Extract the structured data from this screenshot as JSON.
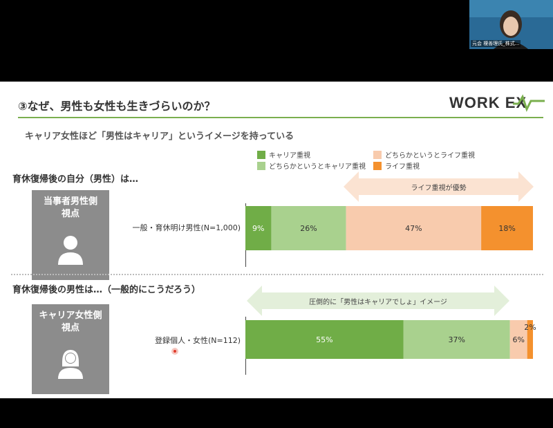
{
  "webcam": {
    "caption": "元会 榎善理氏_株式..."
  },
  "slide": {
    "title": "③なぜ、男性も女性も生きづらいのか？",
    "logo": "WORK EX",
    "subtitle": "キャリア女性ほど「男性はキャリア」というイメージを持っている"
  },
  "legend": [
    {
      "label": "キャリア重視",
      "color": "#70ad47"
    },
    {
      "label": "どちらかというとライフ重視",
      "color": "#f8cbad"
    },
    {
      "label": "どちらかというとキャリア重視",
      "color": "#a9d18e"
    },
    {
      "label": "ライフ重視",
      "color": "#f4912e"
    }
  ],
  "sections": [
    {
      "heading": "育休復帰後の自分（男性）は…",
      "box_label_line1": "当事者男性側",
      "box_label_line2": "視点",
      "row_label": "一般・育休明け男性(N=1,000)",
      "arrow_text": "ライフ重視が優勢"
    },
    {
      "heading": "育休復帰後の男性は…（一般的にこうだろう）",
      "box_label_line1": "キャリア女性側",
      "box_label_line2": "視点",
      "row_label": "登録個人・女性(N=112)",
      "arrow_text": "圧倒的に「男性はキャリアでしょ」イメージ"
    }
  ],
  "chart_data": {
    "type": "bar",
    "orientation": "horizontal-stacked-100",
    "categories": [
      "一般・育休明け男性(N=1,000)",
      "登録個人・女性(N=112)"
    ],
    "series": [
      {
        "name": "キャリア重視",
        "values": [
          9,
          55
        ],
        "labels": [
          "9%",
          "55%"
        ]
      },
      {
        "name": "どちらかというとキャリア重視",
        "values": [
          26,
          37
        ],
        "labels": [
          "26%",
          "37%"
        ]
      },
      {
        "name": "どちらかというとライフ重視",
        "values": [
          47,
          6
        ],
        "labels": [
          "47%",
          "6%"
        ]
      },
      {
        "name": "ライフ重視",
        "values": [
          18,
          2
        ],
        "labels": [
          "18%",
          "2%"
        ]
      }
    ],
    "xlim": [
      0,
      100
    ]
  }
}
